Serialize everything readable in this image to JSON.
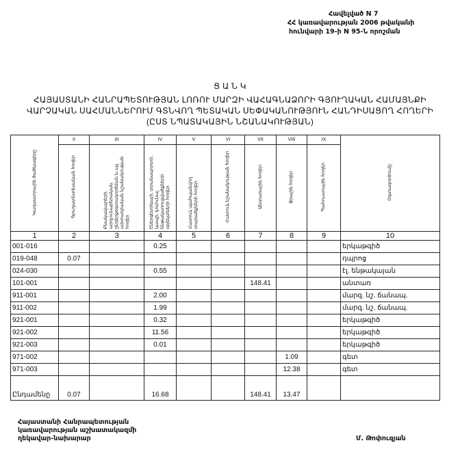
{
  "appendix": {
    "lines": [
      "Հավելված N 7",
      "ՀՀ կառավարության 2006 թվականի",
      "հունվարի 19-ի N 95-Ն որոշման"
    ]
  },
  "title": {
    "heading": "Ց Ա Ն Կ",
    "lines": [
      "ՀԱՅԱՍՏԱՆԻ ՀԱՆՐԱՊԵՏՈՒԹՅԱՆ ԼՈՌՈՒ ՄԱՐԶԻ ՎԱՀԱԳՆԱՁՈՐԻ ԳՅՈՒՂԱԿԱՆ ՀԱՄԱՅՆՔԻ",
      "ՎԱՐՉԱԿԱՆ ՍԱՀՄԱՆՆԵՐՈՒՄ ԳՏՆՎՈՂ ՊԵՏԱԿԱՆ ՍԵՓԱԿԱՆՈՒԹՅՈՒՆ ՀԱՆԴԻՍԱՑՈՂ ՀՈՂԵՐԻ",
      "(ԸՍՏ ՆՊԱՏԱԿԱՅԻՆ ՆՇԱՆԱԿՈՒԹՅԱՆ)"
    ]
  },
  "table": {
    "roman": [
      "",
      "II",
      "III",
      "IV",
      "V",
      "VI",
      "VII",
      "VIII",
      "IX",
      ""
    ],
    "headers": [
      "Կադաստրային ծածկագիրը",
      "Գյուղատնտեսական հողեր",
      "Բնակավայրերի, արդյունաբերական, ընդերքօգտագործման և այլ արտադրական նշանակության հողեր",
      "Էներգետիկայի, տրանսպորտի, կապի, կոմունալ ենթակառուցվածքների օբյեկտների հողեր",
      "Հատուկ պահպանվող տարածքների հողեր",
      "Հատուկ նշանակության հողեր",
      "Անտառային հողեր",
      "Ջրային հողեր",
      "Պահուստային հողեր",
      "Օգտագործումը"
    ],
    "numbers": [
      "1",
      "2",
      "3",
      "4",
      "5",
      "6",
      "7",
      "8",
      "9",
      "10"
    ],
    "rows": [
      [
        "001-016",
        "",
        "",
        "0.25",
        "",
        "",
        "",
        "",
        "",
        "երկաթգիծ"
      ],
      [
        "019-048",
        "0.07",
        "",
        "",
        "",
        "",
        "",
        "",
        "",
        "դպրոց"
      ],
      [
        "024-030",
        "",
        "",
        "0.55",
        "",
        "",
        "",
        "",
        "",
        "էլ. ենթակայան"
      ],
      [
        "101-001",
        "",
        "",
        "",
        "",
        "",
        "148.41",
        "",
        "",
        "անտառ"
      ],
      [
        "911-001",
        "",
        "",
        "2.00",
        "",
        "",
        "",
        "",
        "",
        "մարզ. նշ. ճանապ."
      ],
      [
        "911-002",
        "",
        "",
        "1.99",
        "",
        "",
        "",
        "",
        "",
        "մարզ. նշ. ճանապ."
      ],
      [
        "921-001",
        "",
        "",
        "0.32",
        "",
        "",
        "",
        "",
        "",
        "երկաթգիծ"
      ],
      [
        "921-002",
        "",
        "",
        "11.56",
        "",
        "",
        "",
        "",
        "",
        "երկաթգիծ"
      ],
      [
        "921-003",
        "",
        "",
        "0.01",
        "",
        "",
        "",
        "",
        "",
        "երկաթգիծ"
      ],
      [
        "971-002",
        "",
        "",
        "",
        "",
        "",
        "",
        "1.09",
        "",
        "գետ"
      ],
      [
        "971-003",
        "",
        "",
        "",
        "",
        "",
        "",
        "12.38",
        "",
        "գետ"
      ]
    ],
    "total": [
      "Ընդամենը",
      "0.07",
      "",
      "16.68",
      "",
      "",
      "148.41",
      "13.47",
      "",
      ""
    ]
  },
  "footer": {
    "position_lines": [
      "Հայաստանի Հանրապետության",
      "կառավարության աշխատակազմի",
      "ղեկավար-նախարար"
    ],
    "signatory": "Մ. Թոփուզյան"
  }
}
